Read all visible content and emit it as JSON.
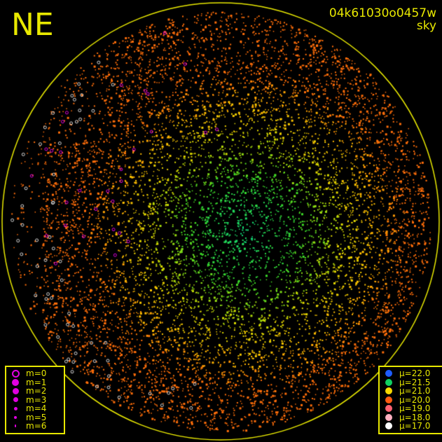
{
  "header": {
    "direction": "NE",
    "image_id": "04k61030o0457w",
    "subtitle": "sky"
  },
  "magnitude_legend": {
    "items": [
      {
        "label": "m=0",
        "style": "ring"
      },
      {
        "label": "m=1"
      },
      {
        "label": "m=2"
      },
      {
        "label": "m=3"
      },
      {
        "label": "m=4"
      },
      {
        "label": "m=5"
      },
      {
        "label": "m=6"
      }
    ],
    "color": "#e000e0"
  },
  "brightness_legend": {
    "items": [
      {
        "label": "μ=22.0",
        "color": "#1e5cff"
      },
      {
        "label": "μ=21.5",
        "color": "#10d060"
      },
      {
        "label": "μ=21.0",
        "color": "#f8d800"
      },
      {
        "label": "μ=20.0",
        "color": "#ff5a10"
      },
      {
        "label": "μ=19.0",
        "color": "#ff6070"
      },
      {
        "label": "μ=18.0",
        "color": "#ffb0c0"
      },
      {
        "label": "μ=17.0",
        "color": "#ffffff"
      }
    ]
  },
  "colors": {
    "frame": "#e8e800",
    "background": "#000000"
  }
}
